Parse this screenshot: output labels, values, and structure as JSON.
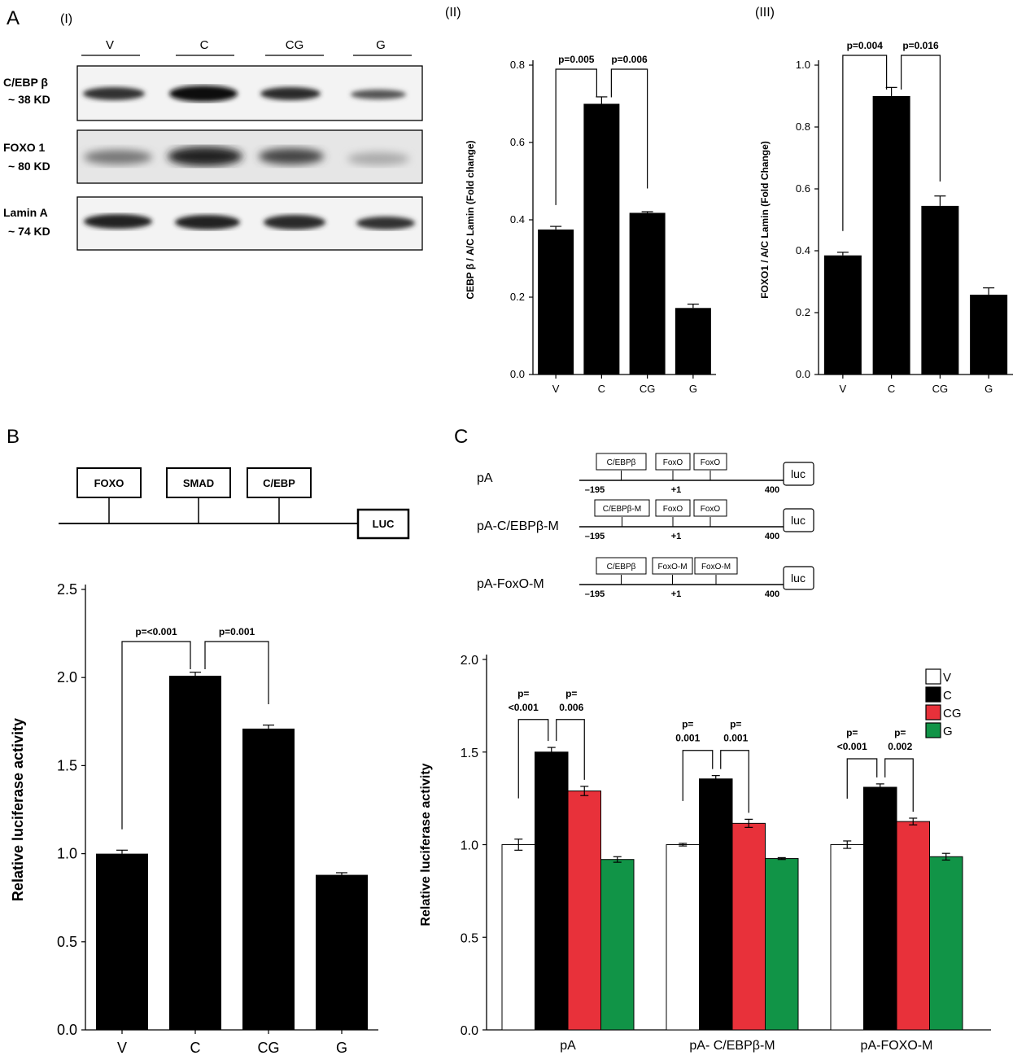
{
  "panels": {
    "A": "A",
    "A_I": "(I)",
    "A_II": "(II)",
    "A_III": "(III)",
    "B": "B",
    "C": "C"
  },
  "blot": {
    "lanes": [
      "V",
      "C",
      "CG",
      "G"
    ],
    "rows": [
      {
        "name": "C/EBP β",
        "size": "~ 38 KD"
      },
      {
        "name": "FOXO 1",
        "size": "~ 80 KD"
      },
      {
        "name": "Lamin A",
        "size": "~ 74 KD"
      }
    ]
  },
  "promoter_B": {
    "boxes": [
      "FOXO",
      "SMAD",
      "C/EBP"
    ],
    "reporter": "LUC"
  },
  "constructs_C": [
    {
      "name": "pA",
      "sites": [
        "C/EBPβ",
        "FoxO",
        "FoxO"
      ]
    },
    {
      "name": "pA-C/EBPβ-M",
      "sites": [
        "C/EBPβ-M",
        "FoxO",
        "FoxO"
      ]
    },
    {
      "name": "pA-FoxO-M",
      "sites": [
        "C/EBPβ",
        "FoxO-M",
        "FoxO-M"
      ]
    }
  ],
  "constructs_coords": {
    "start": "–195",
    "tss": "+1",
    "end": "400",
    "reporter": "luc"
  },
  "colors": {
    "V": "#ffffff",
    "C": "#000000",
    "CG": "#e8313a",
    "G": "#119447"
  },
  "chart_data": [
    {
      "id": "A-II",
      "type": "bar",
      "categories": [
        "V",
        "C",
        "CG",
        "G"
      ],
      "values": [
        0.375,
        0.7,
        0.418,
        0.172
      ],
      "errors": [
        0.008,
        0.018,
        0.003,
        0.01
      ],
      "ylabel": "CEBP β / A/C Lamin (Fold change)",
      "ylim": [
        0,
        0.8
      ],
      "yticks": [
        "0.0",
        "0.2",
        "0.4",
        "0.6",
        "0.8"
      ],
      "pvalues": [
        {
          "text": "p=0.005",
          "between": [
            "V",
            "C"
          ]
        },
        {
          "text": "p=0.006",
          "between": [
            "C",
            "CG"
          ]
        }
      ]
    },
    {
      "id": "A-III",
      "type": "bar",
      "categories": [
        "V",
        "C",
        "CG",
        "G"
      ],
      "values": [
        0.385,
        0.9,
        0.545,
        0.258
      ],
      "errors": [
        0.01,
        0.028,
        0.032,
        0.022
      ],
      "ylabel": "FOXO1 / A/C Lamin (Fold Change)",
      "ylim": [
        0,
        1.0
      ],
      "yticks": [
        "0.0",
        "0.2",
        "0.4",
        "0.6",
        "0.8",
        "1.0"
      ],
      "pvalues": [
        {
          "text": "p=0.004",
          "between": [
            "V",
            "C"
          ]
        },
        {
          "text": "p=0.016",
          "between": [
            "C",
            "CG"
          ]
        }
      ]
    },
    {
      "id": "B",
      "type": "bar",
      "categories": [
        "V",
        "C",
        "CG",
        "G"
      ],
      "values": [
        1.0,
        2.01,
        1.71,
        0.88
      ],
      "errors": [
        0.02,
        0.02,
        0.02,
        0.012
      ],
      "ylabel": "Relative luciferase activity",
      "ylim": [
        0,
        2.5
      ],
      "yticks": [
        "0.0",
        "0.5",
        "1.0",
        "1.5",
        "2.0",
        "2.5"
      ],
      "pvalues": [
        {
          "text": "p=<0.001",
          "between": [
            "V",
            "C"
          ]
        },
        {
          "text": "p=0.001",
          "between": [
            "C",
            "CG"
          ]
        }
      ]
    },
    {
      "id": "C",
      "type": "bar",
      "categories": [
        "pA",
        "pA- C/EBPβ-M",
        "pA-FOXO-M"
      ],
      "series": [
        {
          "name": "V",
          "values": [
            1.0,
            1.0,
            1.0
          ],
          "errors": [
            0.03,
            0.007,
            0.02
          ]
        },
        {
          "name": "C",
          "values": [
            1.5,
            1.355,
            1.31
          ],
          "errors": [
            0.025,
            0.018,
            0.018
          ]
        },
        {
          "name": "CG",
          "values": [
            1.29,
            1.115,
            1.125
          ],
          "errors": [
            0.025,
            0.022,
            0.018
          ]
        },
        {
          "name": "G",
          "values": [
            0.92,
            0.925,
            0.935
          ],
          "errors": [
            0.015,
            0.005,
            0.018
          ]
        }
      ],
      "ylabel": "Relative luciferase activity",
      "ylim": [
        0,
        2.0
      ],
      "yticks": [
        "0.0",
        "0.5",
        "1.0",
        "1.5",
        "2.0"
      ],
      "legend": "top-right",
      "pvalues": [
        [
          {
            "line1": "p=",
            "line2": "<0.001"
          },
          {
            "line1": "p=",
            "line2": "0.006"
          }
        ],
        [
          {
            "line1": "p=",
            "line2": "0.001"
          },
          {
            "line1": "p=",
            "line2": "0.001"
          }
        ],
        [
          {
            "line1": "p=",
            "line2": "<0.001"
          },
          {
            "line1": "p=",
            "line2": "0.002"
          }
        ]
      ]
    }
  ]
}
